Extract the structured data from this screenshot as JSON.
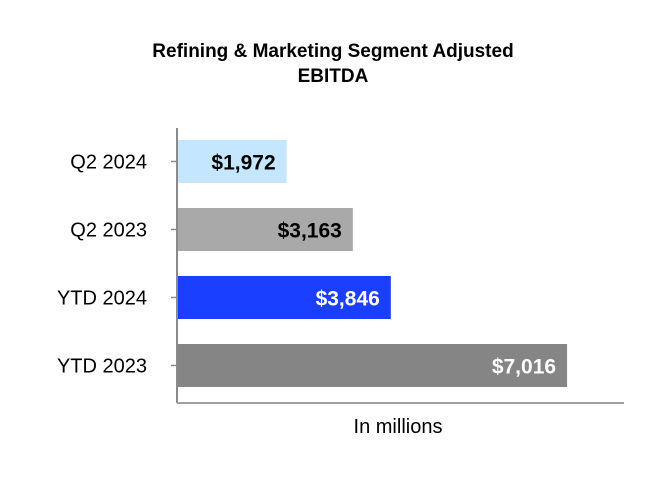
{
  "chart_data": {
    "type": "bar",
    "orientation": "horizontal",
    "title": "Refining & Marketing Segment Adjusted EBITDA",
    "title_lines": [
      "Refining & Marketing Segment Adjusted",
      "EBITDA"
    ],
    "xlabel": "In millions",
    "categories": [
      "Q2 2024",
      "Q2 2023",
      "YTD 2024",
      "YTD 2023"
    ],
    "values": [
      1972,
      3163,
      3846,
      7016
    ],
    "value_labels": [
      "$1,972",
      "$3,163",
      "$3,846",
      "$7,016"
    ],
    "bar_colors": [
      "#c4e6ff",
      "#a9a9a9",
      "#1a3fff",
      "#858585"
    ],
    "label_colors": [
      "#000000",
      "#000000",
      "#ffffff",
      "#ffffff"
    ],
    "xlim": [
      0,
      8040
    ],
    "grid": false,
    "legend": "none"
  }
}
